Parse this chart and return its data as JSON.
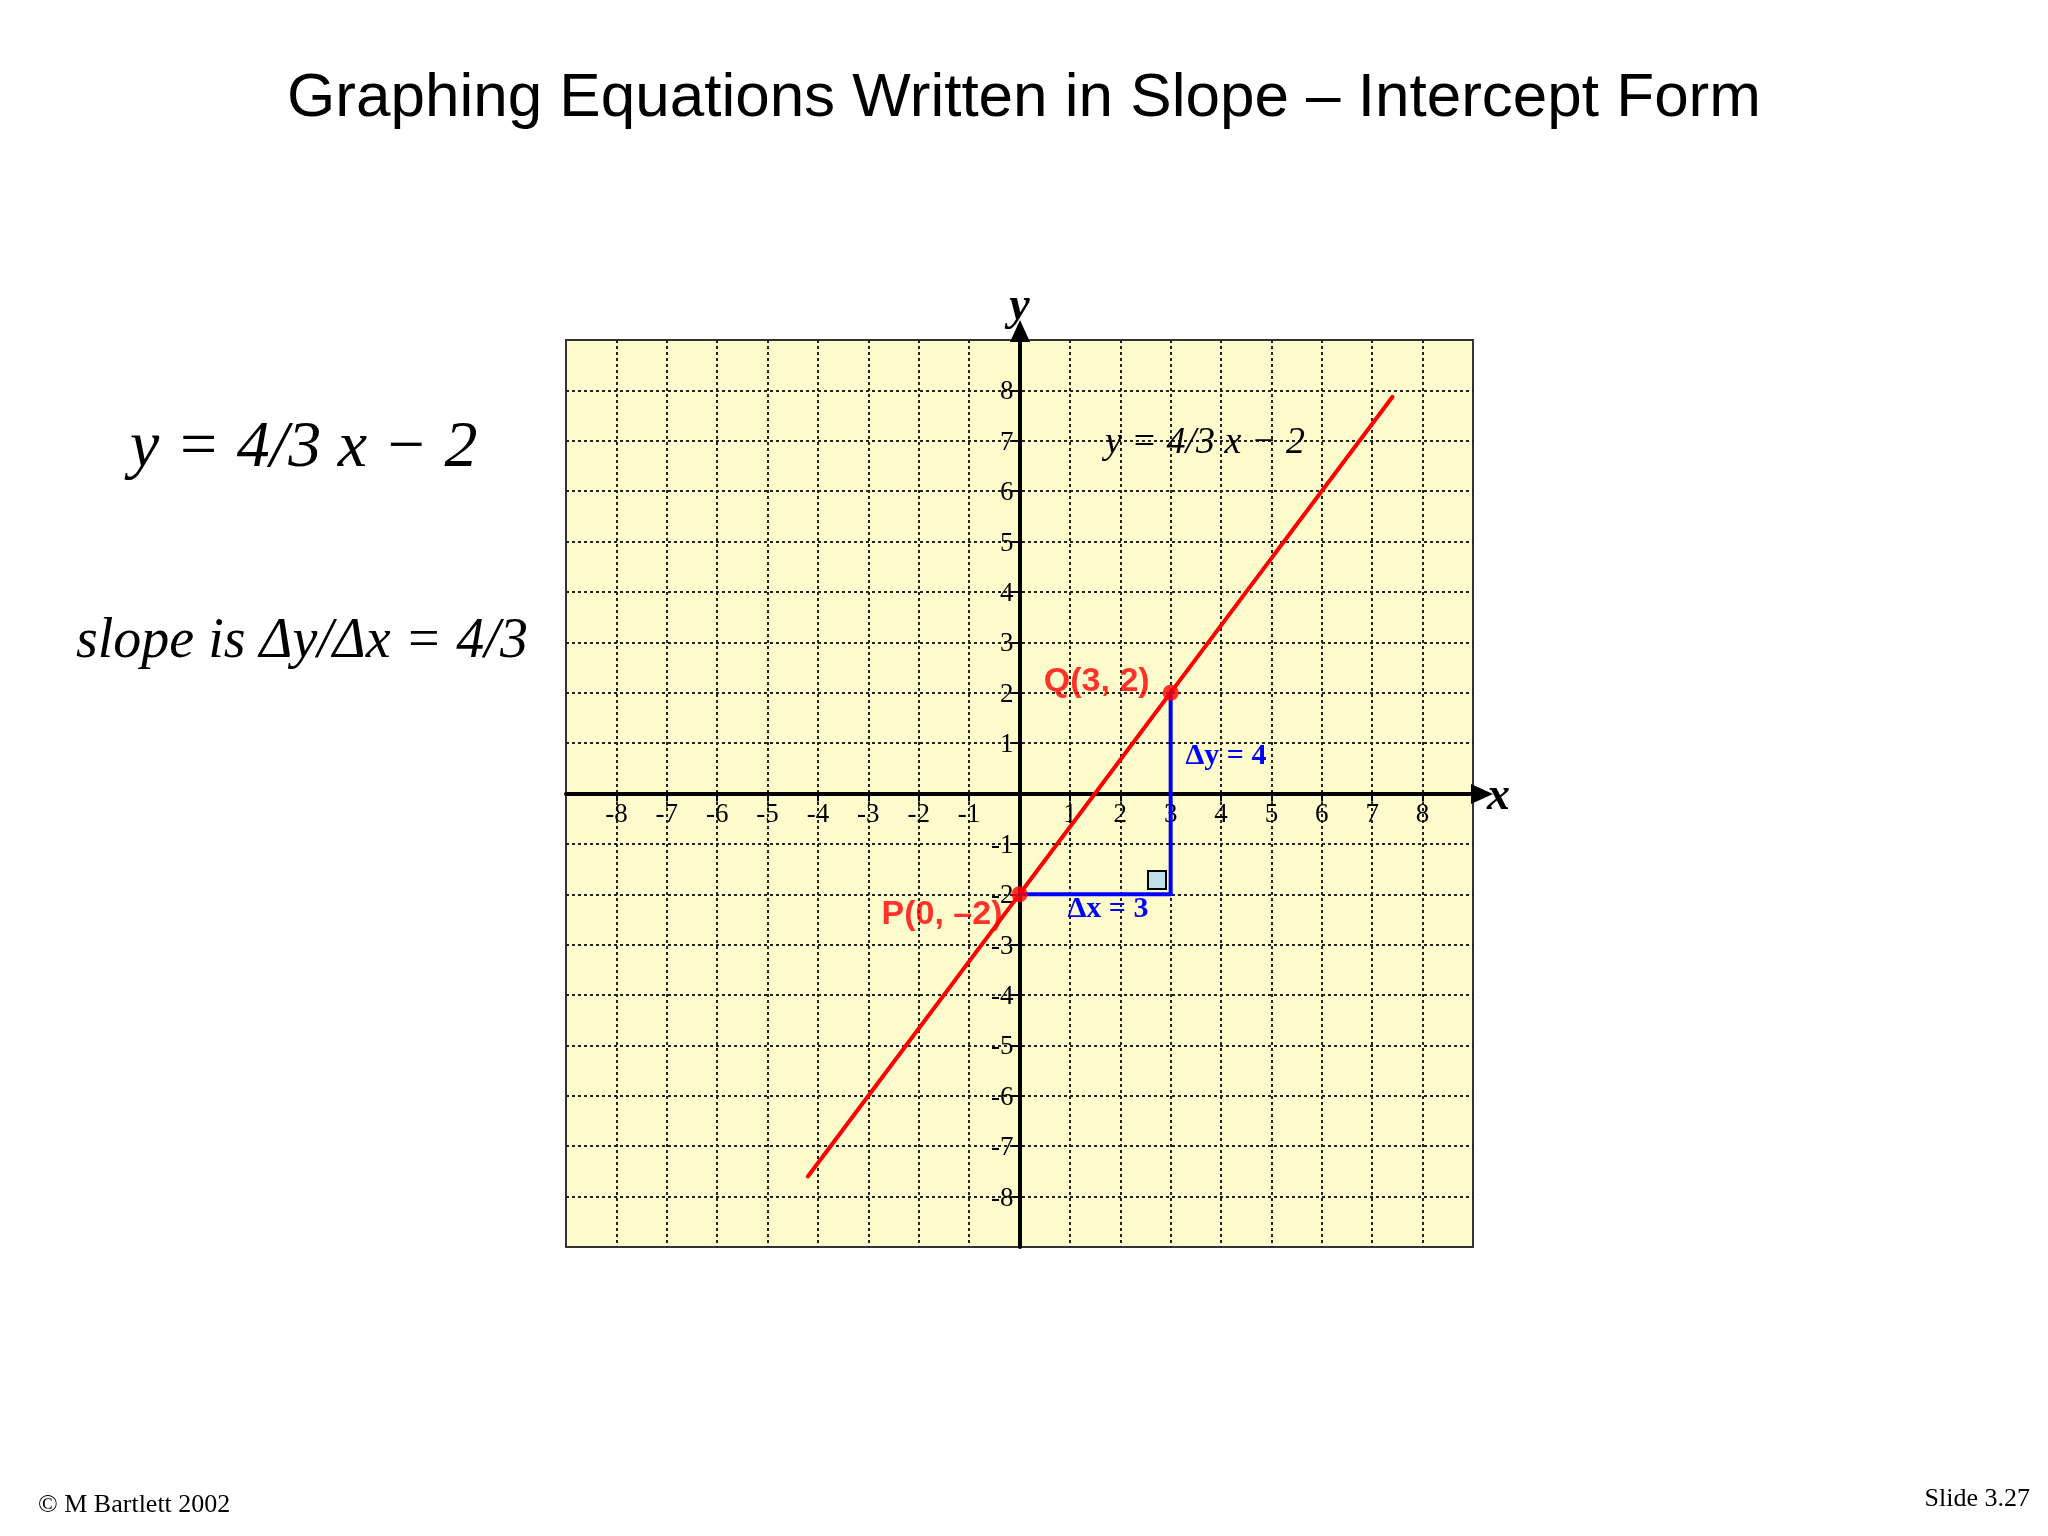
{
  "chart_data": {
    "type": "line",
    "title": "Graphing Equations Written in Slope – Intercept Form",
    "xlabel": "x",
    "ylabel": "y",
    "xlim": [
      -9,
      9
    ],
    "ylim": [
      -9,
      9
    ],
    "xticks": [
      -8,
      -7,
      -6,
      -5,
      -4,
      -3,
      -2,
      -1,
      1,
      2,
      3,
      4,
      5,
      6,
      7,
      8
    ],
    "yticks": [
      -8,
      -7,
      -6,
      -5,
      -4,
      -3,
      -2,
      -1,
      1,
      2,
      3,
      4,
      5,
      6,
      7,
      8
    ],
    "grid": true,
    "marker": "none",
    "line_style": "solid",
    "series": [
      {
        "color": "#ff0000",
        "x": [
          -4.2,
          7.4
        ],
        "values": [
          -7.6,
          7.87
        ]
      },
      {
        "color": "#0000ff",
        "x": [
          0,
          3
        ],
        "values": [
          -2,
          -2
        ]
      },
      {
        "color": "#0000ff",
        "x": [
          3,
          3
        ],
        "values": [
          -2,
          2
        ]
      },
      {
        "type": "scatter",
        "color": "#ff0000",
        "marker": "circle",
        "x": [
          0,
          3
        ],
        "values": [
          -2,
          2
        ],
        "value_labels": [
          "P(0, –2)",
          "Q(3, 2)"
        ]
      }
    ],
    "annotations": [
      "y = 4/3 x − 2",
      "Δx = 3",
      "Δy = 4",
      "y = 4/3 x − 2",
      "slope is Δy/Δx = 4/3",
      "© M Bartlett 2002",
      "Slide 3.27"
    ]
  }
}
